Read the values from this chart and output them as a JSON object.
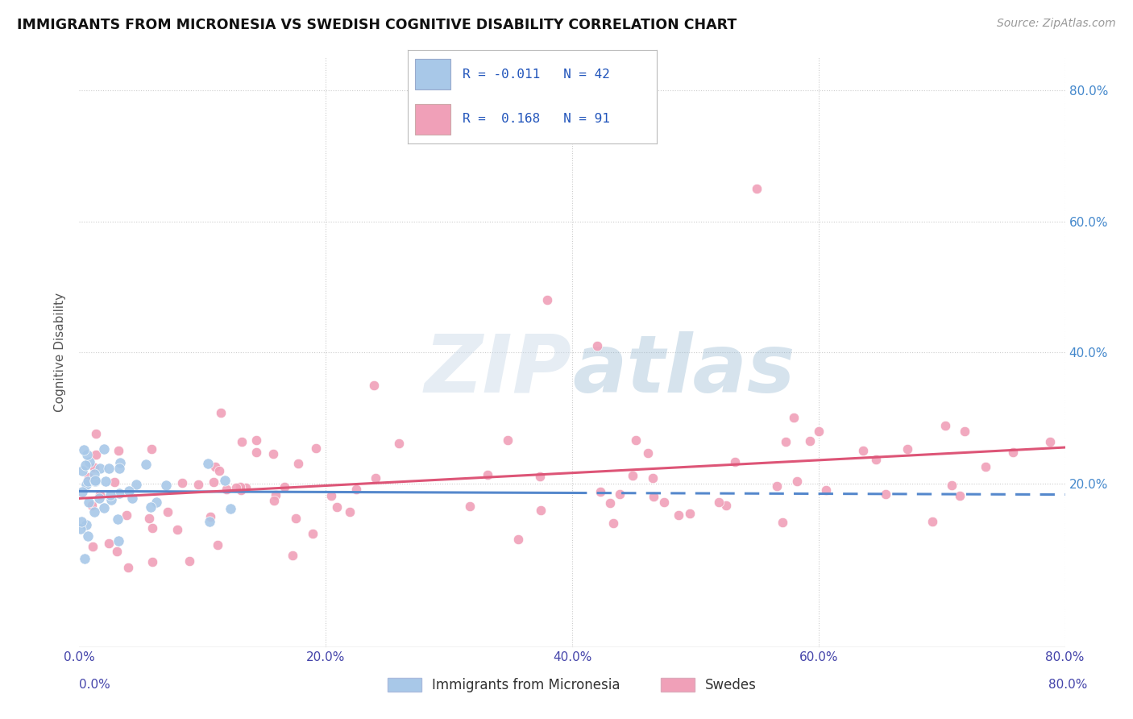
{
  "title": "IMMIGRANTS FROM MICRONESIA VS SWEDISH COGNITIVE DISABILITY CORRELATION CHART",
  "source": "Source: ZipAtlas.com",
  "ylabel": "Cognitive Disability",
  "legend_label1": "Immigrants from Micronesia",
  "legend_label2": "Swedes",
  "R1": -0.011,
  "N1": 42,
  "R2": 0.168,
  "N2": 91,
  "color_blue": "#a8c8e8",
  "color_pink": "#f0a0b8",
  "line_color_blue": "#5588cc",
  "line_color_pink": "#dd5577",
  "watermark_color": "#d8e4f0",
  "background_color": "#ffffff",
  "grid_color": "#cccccc",
  "xmin": 0.0,
  "xmax": 80.0,
  "ymin": -5.0,
  "ymax": 85.0,
  "xtick_vals": [
    0,
    20,
    40,
    60,
    80
  ],
  "ytick_vals": [
    20,
    40,
    60,
    80
  ]
}
